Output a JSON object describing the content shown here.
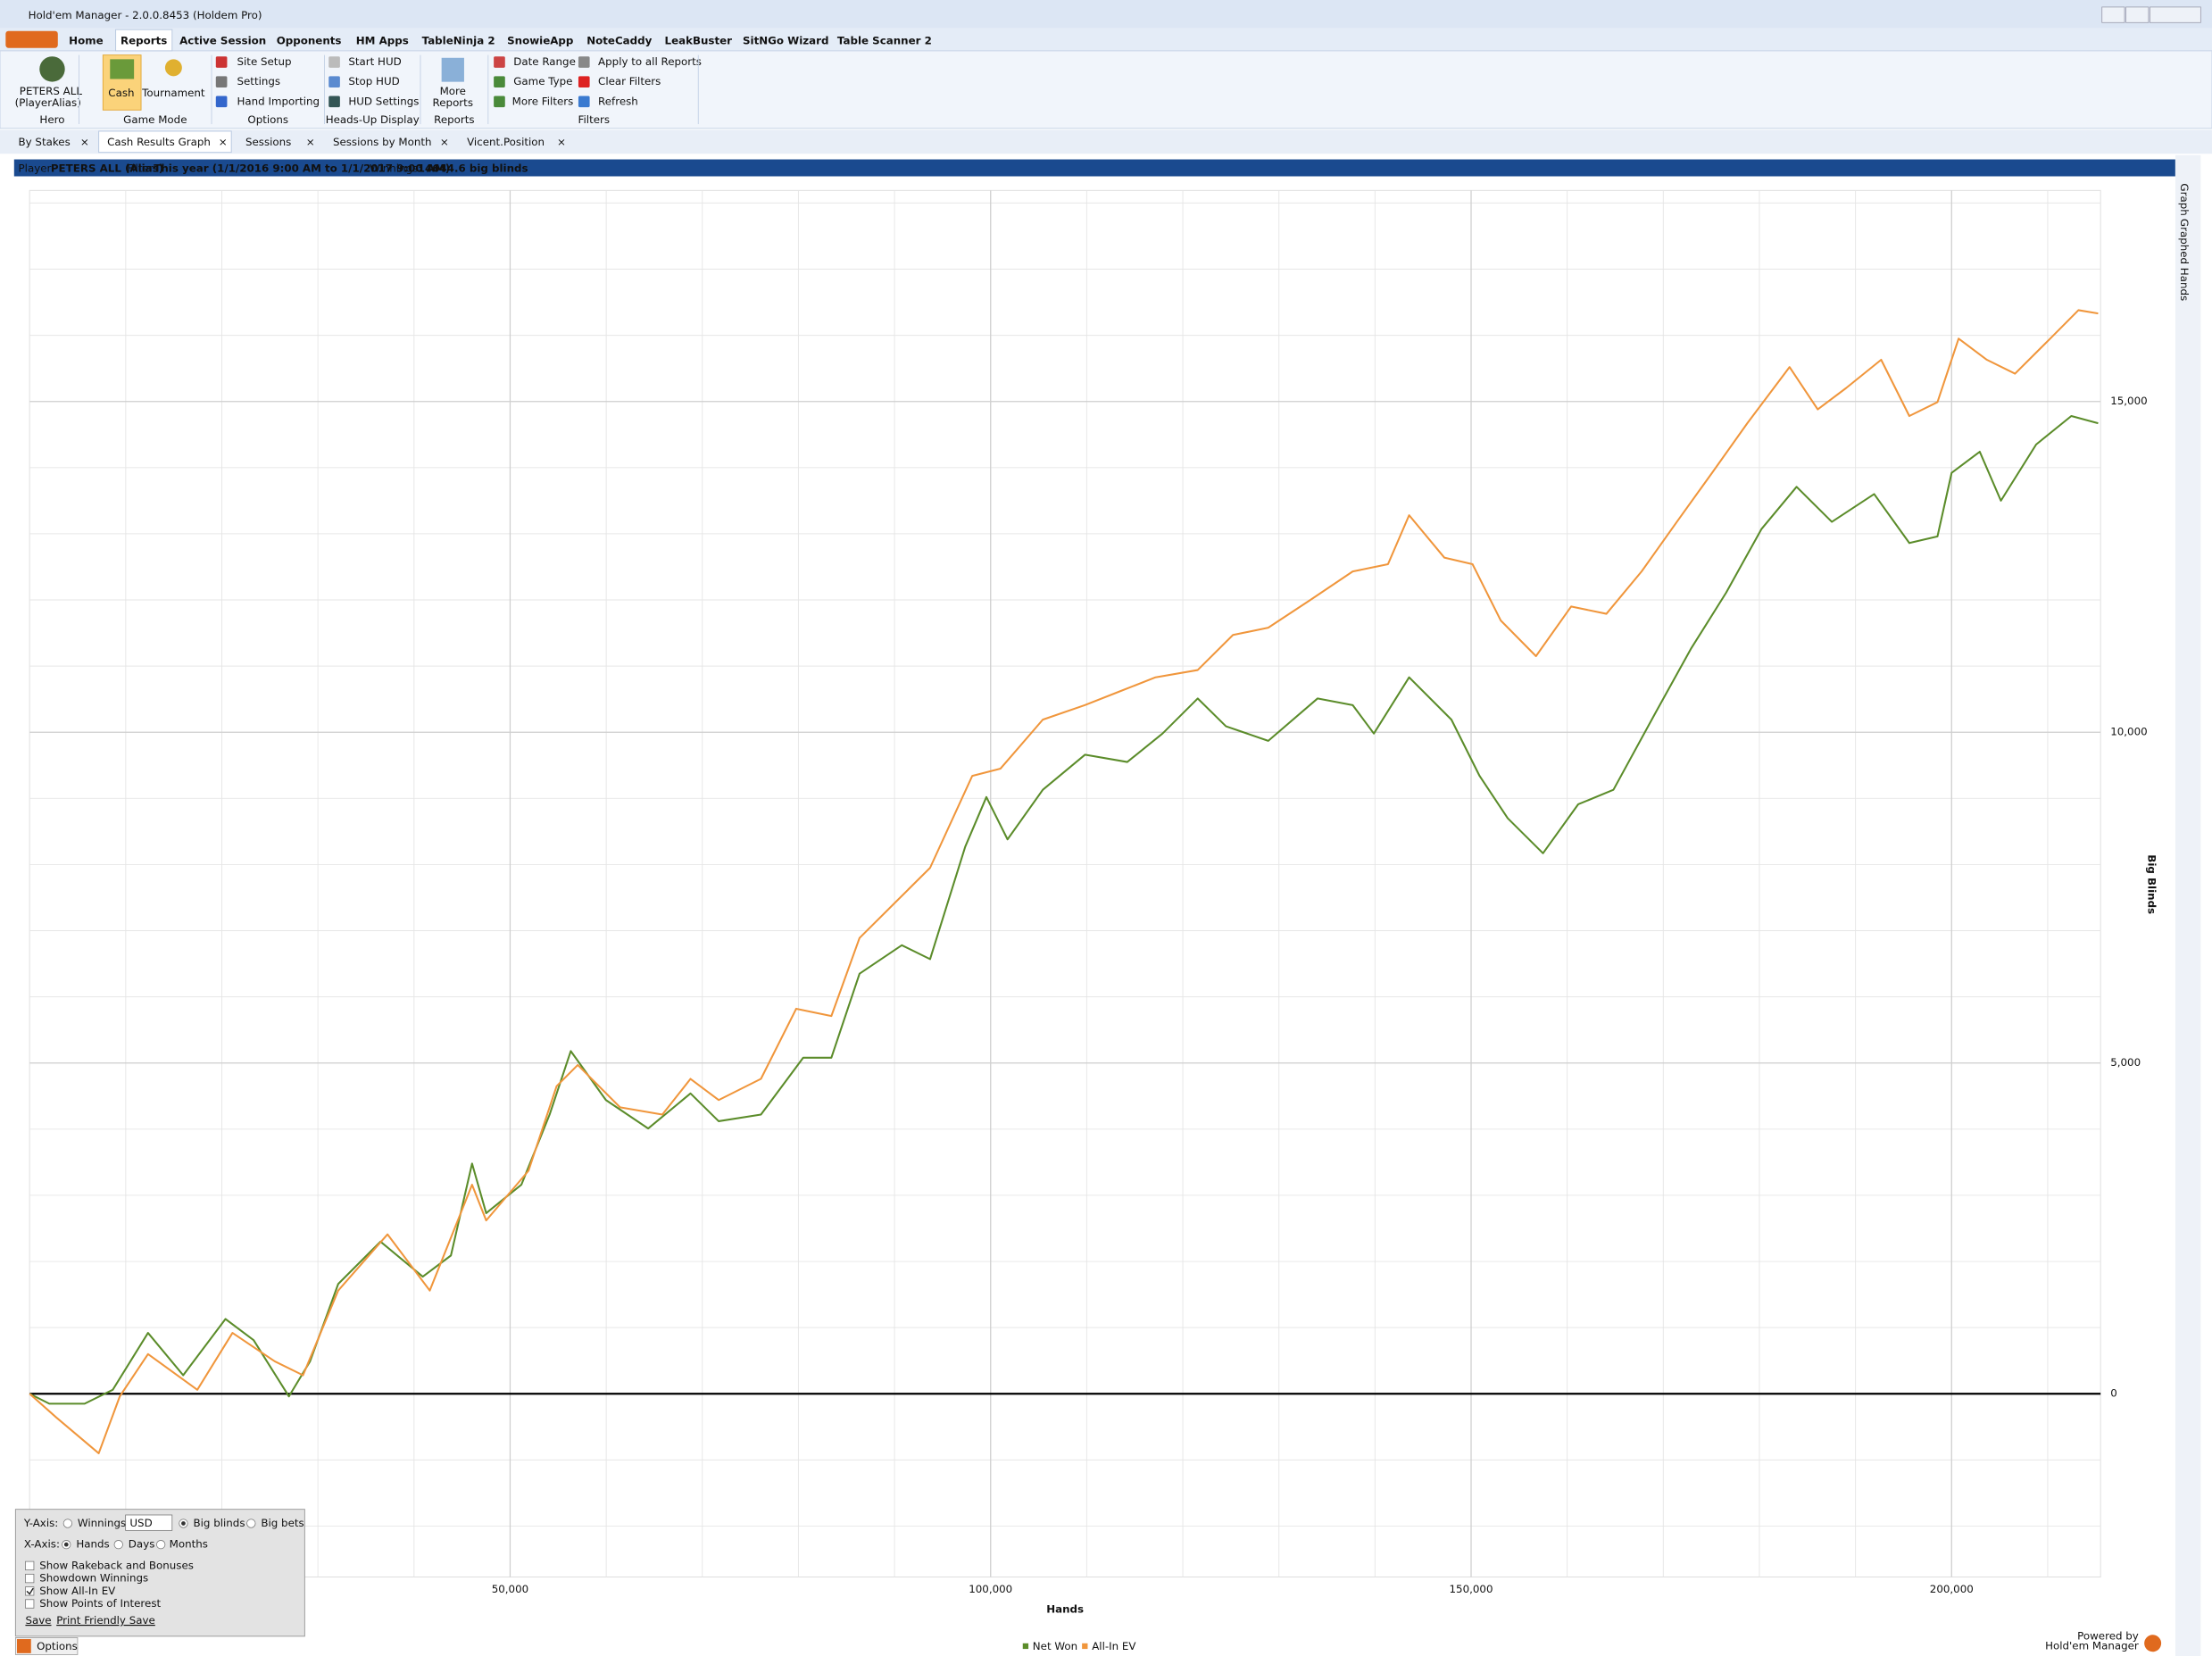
{
  "window": {
    "title": "Hold'em Manager - 2.0.0.8453 (Holdem Pro)"
  },
  "menu": {
    "items": [
      "Home",
      "Reports",
      "Active Session",
      "Opponents",
      "HM Apps",
      "TableNinja 2",
      "SnowieApp",
      "NoteCaddy",
      "LeakBuster",
      "SitNGo Wizard",
      "Table Scanner 2"
    ],
    "active": 1
  },
  "ribbon": {
    "hero_name": "PETERS ALL",
    "hero_alias": "(PlayerAlias)",
    "cash": "Cash",
    "tournament": "Tournament",
    "site_setup": "Site Setup",
    "settings": "Settings",
    "hand_importing": "Hand Importing",
    "start_hud": "Start HUD",
    "stop_hud": "Stop HUD",
    "hud_settings": "HUD Settings",
    "more_reports_1": "More",
    "more_reports_2": "Reports",
    "date_range": "Date Range",
    "game_type": "Game Type",
    "more_filters": "More Filters",
    "apply_all": "Apply to all Reports",
    "clear_filters": "Clear Filters",
    "refresh": "Refresh",
    "groups": [
      "Hero",
      "Game Mode",
      "Options",
      "Heads-Up Display",
      "Reports",
      "Filters"
    ]
  },
  "report_tabs": {
    "items": [
      "By Stakes",
      "Cash Results Graph",
      "Sessions",
      "Sessions by Month",
      "Vicent.Position"
    ],
    "active": 1
  },
  "info_bar": {
    "player_label": "Player:",
    "player": "PETERS ALL (Alias)",
    "filter_label": "Filter:",
    "filter": "This year (1/1/2016 9:00 AM to 1/1/2017 9:00 AM)",
    "winnings_label": "Winnings:",
    "winnings": "14644.6 big blinds"
  },
  "side_tabs": [
    "Graph",
    "Graphed Hands"
  ],
  "chart_data": {
    "type": "line",
    "xlabel": "Hands",
    "ylabel": "Big Blinds",
    "xlim": [
      0,
      215500
    ],
    "ylim": [
      -2770,
      18190
    ],
    "xticks": [
      {
        "value": 50000,
        "label": "50,000"
      },
      {
        "value": 100000,
        "label": "100,000"
      },
      {
        "value": 150000,
        "label": "150,000"
      },
      {
        "value": 200000,
        "label": "200,000"
      }
    ],
    "yticks": [
      0,
      {
        "value": 5000,
        "label": "5,000"
      },
      {
        "value": 10000,
        "label": "10,000"
      },
      {
        "value": 15000,
        "label": "15,000"
      }
    ],
    "grid": true,
    "legend": "bottom",
    "series": [
      {
        "name": "Net Won",
        "color": "#5b8c2a",
        "x": [
          0,
          2050,
          5720,
          8650,
          12320,
          15980,
          20380,
          23310,
          26980,
          29180,
          32110,
          36510,
          40910,
          43840,
          46040,
          47510,
          51170,
          54110,
          56310,
          59970,
          64370,
          68770,
          71700,
          76100,
          80500,
          83430,
          86360,
          90760,
          93700,
          97360,
          99560,
          101760,
          105430,
          109820,
          114220,
          117890,
          121550,
          124490,
          128890,
          134020,
          137680,
          139880,
          143550,
          147950,
          150880,
          153810,
          157480,
          161140,
          164810,
          169210,
          172870,
          176540,
          180210,
          183870,
          187540,
          191940,
          195600,
          198530,
          200000,
          202930,
          205130,
          208800,
          212460,
          215250
        ],
        "values": [
          0,
          -150,
          -150,
          60,
          920,
          280,
          1130,
          810,
          -40,
          490,
          1660,
          2300,
          1770,
          2090,
          3480,
          2730,
          3160,
          4220,
          5180,
          4440,
          4010,
          4540,
          4120,
          4220,
          5080,
          5080,
          6350,
          6780,
          6570,
          8270,
          9020,
          8380,
          9130,
          9660,
          9550,
          9980,
          10510,
          10090,
          9870,
          10510,
          10410,
          9980,
          10830,
          10190,
          9340,
          8700,
          8170,
          8910,
          9130,
          10300,
          11260,
          12110,
          13070,
          13710,
          13180,
          13600,
          12860,
          12960,
          13920,
          14240,
          13500,
          14350,
          14780,
          14670
        ]
      },
      {
        "name": "All-In EV",
        "color": "#f0963c",
        "x": [
          0,
          2790,
          7190,
          9380,
          12320,
          17450,
          21110,
          25510,
          28450,
          32110,
          37240,
          41640,
          46040,
          47510,
          51910,
          54840,
          57040,
          61440,
          65840,
          68770,
          71700,
          76100,
          79770,
          83430,
          86360,
          90030,
          93700,
          98090,
          101030,
          105430,
          109820,
          113490,
          117160,
          121550,
          125220,
          128890,
          133280,
          137680,
          141350,
          143550,
          147210,
          150150,
          153080,
          156750,
          160410,
          164080,
          167740,
          171410,
          175070,
          178740,
          183140,
          186070,
          189000,
          192670,
          195600,
          198530,
          200730,
          203670,
          206600,
          210260,
          213200,
          215250
        ],
        "values": [
          0,
          -360,
          -900,
          -40,
          600,
          60,
          920,
          490,
          280,
          1560,
          2410,
          1560,
          3160,
          2620,
          3370,
          4650,
          4970,
          4330,
          4220,
          4760,
          4440,
          4760,
          5820,
          5710,
          6890,
          7420,
          7950,
          9340,
          9450,
          10190,
          10410,
          10620,
          10830,
          10940,
          11470,
          11580,
          12000,
          12430,
          12540,
          13280,
          12640,
          12540,
          11690,
          11150,
          11900,
          11790,
          12430,
          13180,
          13920,
          14670,
          15520,
          14880,
          15200,
          15630,
          14780,
          14990,
          15950,
          15630,
          15420,
          15950,
          16380,
          16330
        ]
      }
    ]
  },
  "options_panel": {
    "y_axis_label": "Y-Axis:",
    "y_options": [
      "Winnings",
      "Big blinds",
      "Big bets"
    ],
    "y_selected": 1,
    "currency": "USD",
    "x_axis_label": "X-Axis:",
    "x_options": [
      "Hands",
      "Days",
      "Months"
    ],
    "x_selected": 0,
    "checkboxes": [
      "Show Rakeback and Bonuses",
      "Showdown Winnings",
      "Show All-In EV",
      "Show Points of Interest"
    ],
    "checked": [
      false,
      false,
      true,
      false
    ],
    "links": [
      "Save",
      "Print Friendly Save"
    ],
    "button": "Options"
  },
  "branding": {
    "powered_by": "Powered by",
    "product": "Hold'em Manager"
  }
}
